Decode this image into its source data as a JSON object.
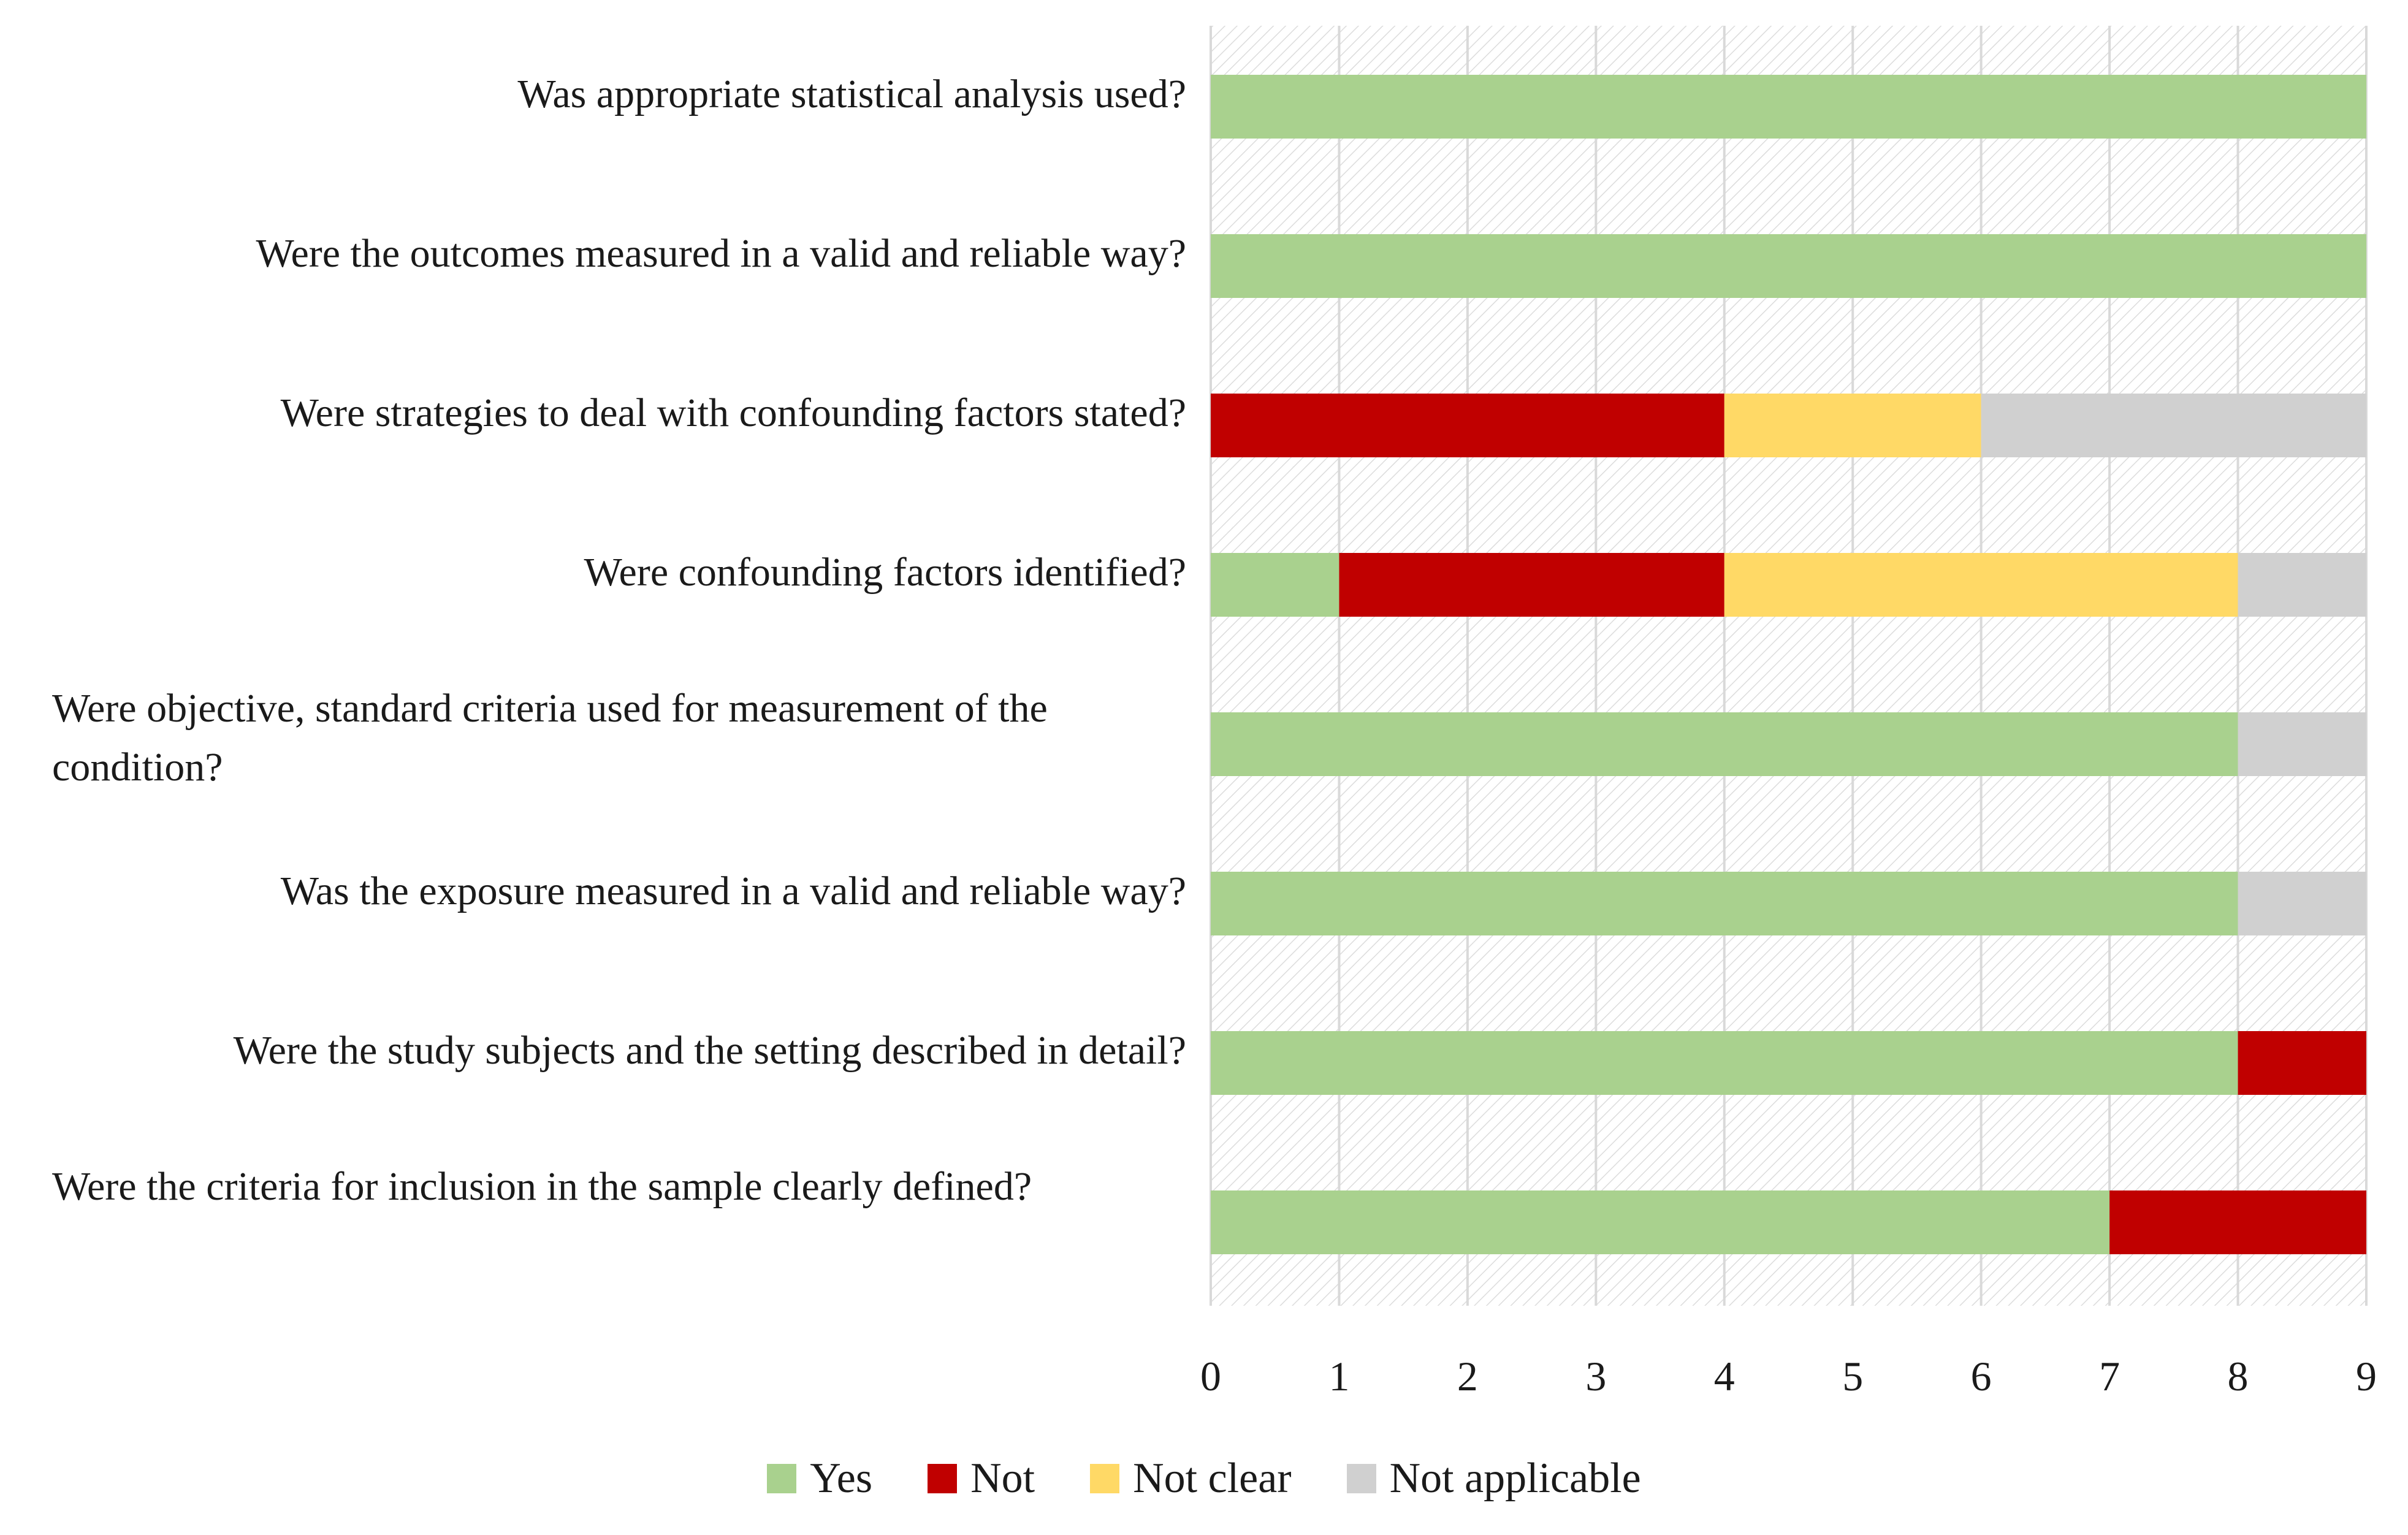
{
  "chart_data": {
    "type": "bar",
    "orientation": "horizontal",
    "stacked": true,
    "title": "",
    "xlabel": "",
    "ylabel": "",
    "xlim": [
      0,
      9
    ],
    "xticks": [
      "0",
      "1",
      "2",
      "3",
      "4",
      "5",
      "6",
      "7",
      "8",
      "9"
    ],
    "grid": true,
    "legend_position": "bottom",
    "categories": [
      "Was appropriate statistical analysis used?",
      "Were the outcomes measured in a valid and reliable way?",
      "Were strategies to deal with confounding factors stated?",
      "Were confounding factors identified?",
      "Were objective, standard criteria used for measurement of the condition?",
      "Was the exposure measured in a valid and reliable way?",
      "Were the study subjects and the setting described in detail?",
      "Were the criteria for inclusion in the sample clearly defined?"
    ],
    "series": [
      {
        "name": "Yes",
        "color": "#a9d18e",
        "values": [
          9,
          9,
          0,
          1,
          8,
          8,
          8,
          7
        ]
      },
      {
        "name": "Not",
        "color": "#c00000",
        "values": [
          0,
          0,
          4,
          3,
          0,
          0,
          1,
          2
        ]
      },
      {
        "name": "Not clear",
        "color": "#ffd966",
        "values": [
          0,
          0,
          2,
          4,
          0,
          0,
          0,
          0
        ]
      },
      {
        "name": "Not applicable",
        "color": "#d0d0d0",
        "values": [
          0,
          0,
          3,
          1,
          1,
          1,
          0,
          0
        ]
      }
    ]
  }
}
